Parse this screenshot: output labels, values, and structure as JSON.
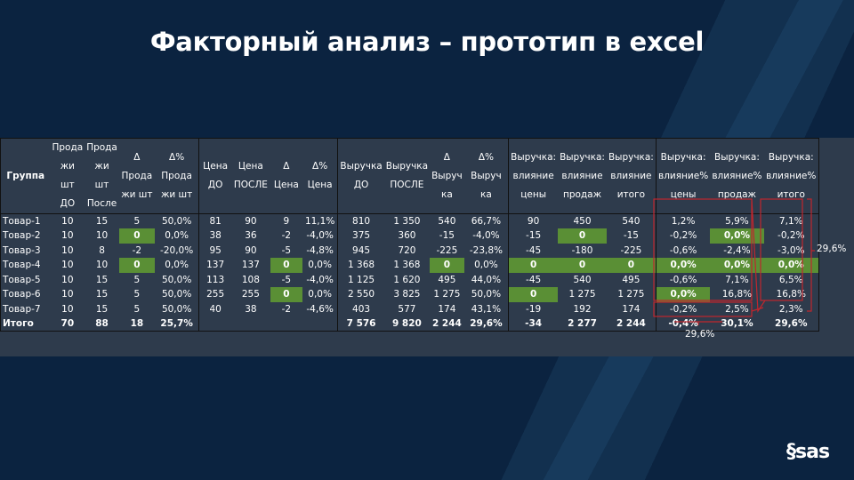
{
  "title": "Факторный анализ – прототип в excel",
  "logo_text": "sas",
  "colors": {
    "background": "#0b2340",
    "table": "#2e3b4c",
    "highlight": "#5a8f35",
    "annotation": "#c0262d"
  },
  "table": {
    "headers": [
      "Группа",
      "Прода жи шт ДО",
      "Прода жи шт После",
      "Δ Прода жи шт",
      "Δ% Прода жи шт",
      "Цена ДО",
      "Цена ПОСЛЕ",
      "Δ Цена",
      "Δ% Цена",
      "Выручка ДО",
      "Выручка ПОСЛЕ",
      "Δ Выруч ка",
      "Δ% Выруч ка",
      "Выручка: влияние цены",
      "Выручка: влияние продаж",
      "Выручка: влияние итого",
      "Выручка: влияние% цены",
      "Выручка: влияние% продаж",
      "Выручка: влияние% итого"
    ],
    "rows": [
      {
        "cells": [
          "Товар-1",
          "10",
          "15",
          "5",
          "50,0%",
          "81",
          "90",
          "9",
          "11,1%",
          "810",
          "1 350",
          "540",
          "66,7%",
          "90",
          "450",
          "540",
          "1,2%",
          "5,9%",
          "7,1%"
        ],
        "highlight": []
      },
      {
        "cells": [
          "Товар-2",
          "10",
          "10",
          "0",
          "0,0%",
          "38",
          "36",
          "-2",
          "-4,0%",
          "375",
          "360",
          "-15",
          "-4,0%",
          "-15",
          "0",
          "-15",
          "-0,2%",
          "0,0%",
          "-0,2%"
        ],
        "highlight": [
          3,
          14,
          17
        ]
      },
      {
        "cells": [
          "Товар-3",
          "10",
          "8",
          "-2",
          "-20,0%",
          "95",
          "90",
          "-5",
          "-4,8%",
          "945",
          "720",
          "-225",
          "-23,8%",
          "-45",
          "-180",
          "-225",
          "-0,6%",
          "-2,4%",
          "-3,0%"
        ],
        "highlight": []
      },
      {
        "cells": [
          "Товар-4",
          "10",
          "10",
          "0",
          "0,0%",
          "137",
          "137",
          "0",
          "0,0%",
          "1 368",
          "1 368",
          "0",
          "0,0%",
          "0",
          "0",
          "0",
          "0,0%",
          "0,0%",
          "0,0%"
        ],
        "highlight": [
          3,
          7,
          11,
          13,
          14,
          15,
          16,
          17,
          18
        ]
      },
      {
        "cells": [
          "Товар-5",
          "10",
          "15",
          "5",
          "50,0%",
          "113",
          "108",
          "-5",
          "-4,0%",
          "1 125",
          "1 620",
          "495",
          "44,0%",
          "-45",
          "540",
          "495",
          "-0,6%",
          "7,1%",
          "6,5%"
        ],
        "highlight": []
      },
      {
        "cells": [
          "Товар-6",
          "10",
          "15",
          "5",
          "50,0%",
          "255",
          "255",
          "0",
          "0,0%",
          "2 550",
          "3 825",
          "1 275",
          "50,0%",
          "0",
          "1 275",
          "1 275",
          "0,0%",
          "16,8%",
          "16,8%"
        ],
        "highlight": [
          7,
          13,
          16
        ]
      },
      {
        "cells": [
          "Товар-7",
          "10",
          "15",
          "5",
          "50,0%",
          "40",
          "38",
          "-2",
          "-4,6%",
          "403",
          "577",
          "174",
          "43,1%",
          "-19",
          "192",
          "174",
          "-0,2%",
          "2,5%",
          "2,3%"
        ],
        "highlight": []
      }
    ],
    "total": {
      "cells": [
        "Итого",
        "70",
        "88",
        "18",
        "25,7%",
        "",
        "",
        "",
        "",
        "7 576",
        "9 820",
        "2 244",
        "29,6%",
        "-34",
        "2 277",
        "2 244",
        "-0,4%",
        "30,1%",
        "29,6%"
      ]
    }
  },
  "annotations": {
    "right_sum": "29,6%",
    "bottom_sum": "29,6%"
  }
}
